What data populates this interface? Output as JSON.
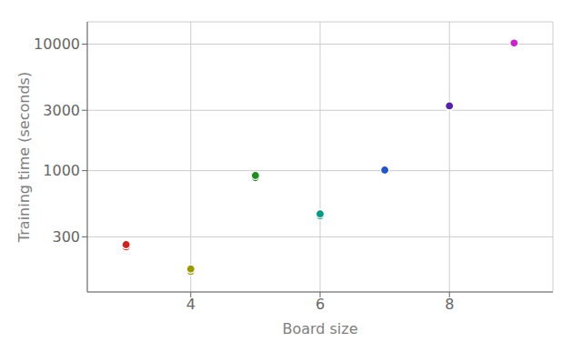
{
  "chart_data": {
    "type": "scatter",
    "xlabel": "Board size",
    "ylabel": "Training time (seconds)",
    "x": [
      3,
      3,
      4,
      4,
      5,
      5,
      6,
      6,
      7,
      7,
      8,
      8,
      9,
      9
    ],
    "values": [
      250,
      260,
      160,
      167,
      880,
      915,
      440,
      455,
      1000,
      1010,
      3200,
      3250,
      10050,
      10200
    ],
    "colors": [
      "#cc2222",
      "#cc2222",
      "#999900",
      "#999900",
      "#228b22",
      "#228b22",
      "#009988",
      "#009988",
      "#2255cc",
      "#2255cc",
      "#5522aa",
      "#5522aa",
      "#cc22cc",
      "#cc22cc"
    ],
    "xlim": [
      2.4,
      9.6
    ],
    "xticks": [
      4,
      6,
      8
    ],
    "ylim": [
      110,
      15000
    ],
    "yticks": [
      300,
      1000,
      3000,
      10000
    ],
    "log": "y",
    "grid": true
  }
}
